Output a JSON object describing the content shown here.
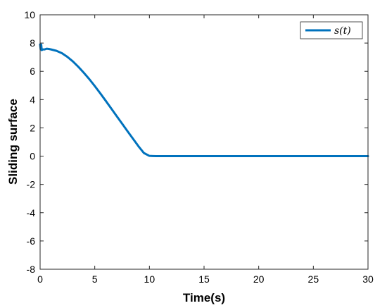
{
  "chart_data": {
    "type": "line",
    "xlabel": "Time(s)",
    "ylabel": "Sliding surface",
    "xlim": [
      0,
      30
    ],
    "ylim": [
      -8,
      10
    ],
    "xticks": [
      0,
      5,
      10,
      15,
      20,
      25,
      30
    ],
    "yticks": [
      -8,
      -6,
      -4,
      -2,
      0,
      2,
      4,
      6,
      8,
      10
    ],
    "grid": false,
    "legend_position": "top-right",
    "series": [
      {
        "name": "s(t)",
        "color": "#0072BD",
        "x": [
          0,
          0.05,
          0.1,
          0.15,
          0.25,
          0.4,
          0.6,
          0.8,
          1.0,
          1.5,
          2.0,
          2.5,
          3.0,
          3.5,
          4.0,
          4.5,
          5.0,
          5.5,
          6.0,
          6.5,
          7.0,
          7.5,
          8.0,
          8.5,
          9.0,
          9.5,
          10.0,
          10.3,
          10.6,
          10.8,
          11.0,
          11.3,
          11.6,
          12.0,
          13.0,
          15.0,
          17.0,
          19.0,
          20.0,
          22.0,
          25.0,
          28.0,
          30.0
        ],
        "y": [
          7.9,
          7.55,
          7.9,
          7.5,
          7.55,
          7.55,
          7.6,
          7.58,
          7.55,
          7.45,
          7.28,
          7.02,
          6.7,
          6.32,
          5.9,
          5.45,
          4.96,
          4.45,
          3.92,
          3.38,
          2.84,
          2.3,
          1.76,
          1.23,
          0.7,
          0.22,
          0.02,
          0.01,
          0.0,
          0.0,
          0.0,
          0.0,
          0.0,
          0.0,
          0.0,
          0.0,
          0.0,
          0.0,
          0.0,
          0.0,
          0.0,
          0.0,
          0.0
        ]
      }
    ]
  }
}
